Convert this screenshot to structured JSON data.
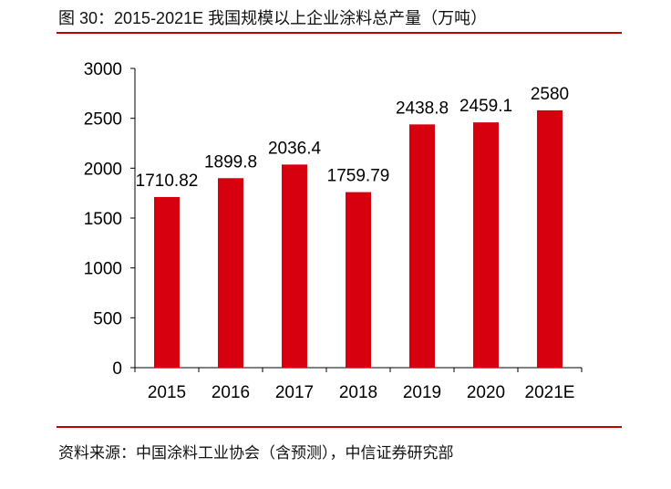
{
  "title": "图 30：2015-2021E 我国规模以上企业涂料总产量（万吨）",
  "source": "资料来源：中国涂料工业协会（含预测），中信证券研究部",
  "colors": {
    "bar": "#d7000f",
    "rule": "#c00000"
  },
  "chart_data": {
    "type": "bar",
    "categories": [
      "2015",
      "2016",
      "2017",
      "2018",
      "2019",
      "2020",
      "2021E"
    ],
    "values": [
      1710.82,
      1899.8,
      2036.4,
      1759.79,
      2438.8,
      2459.1,
      2580
    ],
    "data_labels": [
      "1710.82",
      "1899.8",
      "2036.4",
      "1759.79",
      "2438.8",
      "2459.1",
      "2580"
    ],
    "yticks": [
      0,
      500,
      1000,
      1500,
      2000,
      2500,
      3000
    ],
    "ylim": [
      0,
      3000
    ],
    "grid": false,
    "legend": "none"
  }
}
